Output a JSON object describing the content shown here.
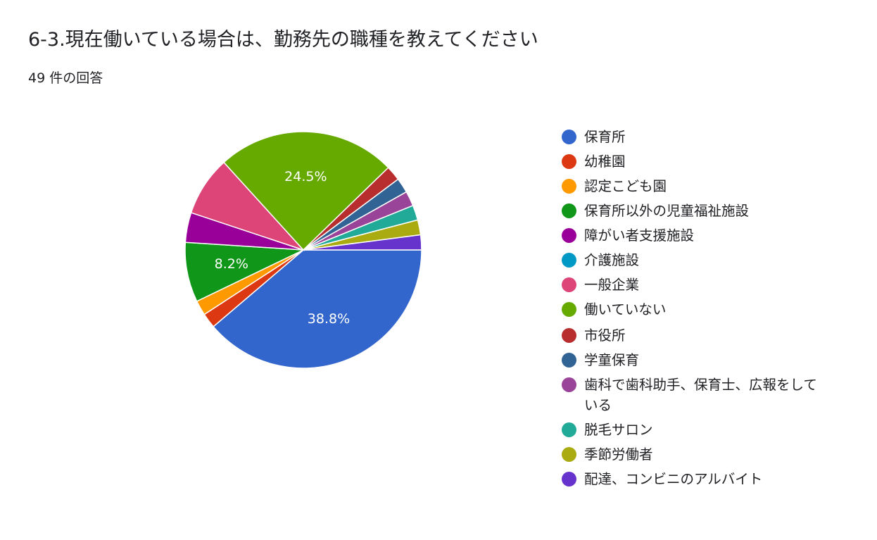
{
  "header": {
    "title": "6-3.現在働いている場合は、勤務先の職種を教えてください",
    "response_count": "49 件の回答"
  },
  "chart_data": {
    "type": "pie",
    "title": "6-3.現在働いている場合は、勤務先の職種を教えてください",
    "total": 49,
    "start_angle": "3 o'clock",
    "direction": "clockwise",
    "legend_position": "right",
    "slices": [
      {
        "label": "保育所",
        "value": 19,
        "percent_label": "38.8%",
        "color": "#3366cc"
      },
      {
        "label": "幼稚園",
        "value": 1,
        "percent_label": "",
        "color": "#dc3912"
      },
      {
        "label": "認定こども園",
        "value": 1,
        "percent_label": "",
        "color": "#ff9900"
      },
      {
        "label": "保育所以外の児童福祉施設",
        "value": 4,
        "percent_label": "8.2%",
        "color": "#109618"
      },
      {
        "label": "障がい者支援施設",
        "value": 2,
        "percent_label": "",
        "color": "#990099"
      },
      {
        "label": "介護施設",
        "value": 0,
        "percent_label": "",
        "color": "#0099c6"
      },
      {
        "label": "一般企業",
        "value": 4,
        "percent_label": "",
        "color": "#dd4477"
      },
      {
        "label": "働いていない",
        "value": 12,
        "percent_label": "24.5%",
        "color": "#66aa00"
      },
      {
        "label": "市役所",
        "value": 1,
        "percent_label": "",
        "color": "#b82e2e"
      },
      {
        "label": "学童保育",
        "value": 1,
        "percent_label": "",
        "color": "#316395"
      },
      {
        "label": "歯科で歯科助手、保育士、広報をしている",
        "value": 1,
        "percent_label": "",
        "color": "#994499"
      },
      {
        "label": "脱毛サロン",
        "value": 1,
        "percent_label": "",
        "color": "#22aa99"
      },
      {
        "label": "季節労働者",
        "value": 1,
        "percent_label": "",
        "color": "#aaaa11"
      },
      {
        "label": "配達、コンビニのアルバイト",
        "value": 1,
        "percent_label": "",
        "color": "#6633cc"
      }
    ]
  }
}
